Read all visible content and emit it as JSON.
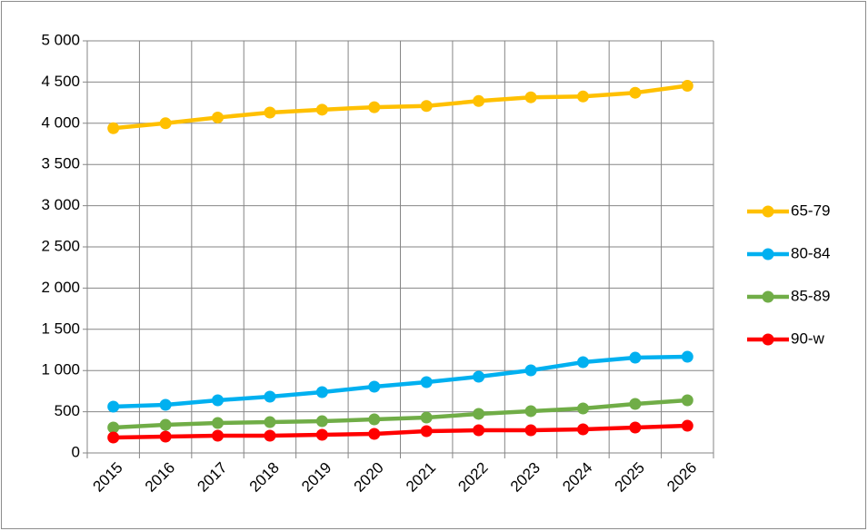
{
  "chart_data": {
    "type": "line",
    "categories": [
      "2015",
      "2016",
      "2017",
      "2018",
      "2019",
      "2020",
      "2021",
      "2022",
      "2023",
      "2024",
      "2025",
      "2026"
    ],
    "series": [
      {
        "name": "65-79",
        "color": "#ffc000",
        "values": [
          3940,
          4000,
          4070,
          4130,
          4165,
          4195,
          4210,
          4270,
          4315,
          4325,
          4370,
          4455
        ]
      },
      {
        "name": "80-84",
        "color": "#00b0f0",
        "values": [
          562,
          584,
          639,
          683,
          738,
          804,
          859,
          925,
          1002,
          1101,
          1156,
          1167
        ]
      },
      {
        "name": "85-89",
        "color": "#70ad47",
        "values": [
          308,
          341,
          363,
          374,
          385,
          407,
          429,
          474,
          507,
          540,
          595,
          639
        ]
      },
      {
        "name": "90-w",
        "color": "#ff0000",
        "values": [
          187,
          198,
          209,
          209,
          220,
          231,
          264,
          275,
          275,
          286,
          308,
          330
        ]
      }
    ],
    "ylim": [
      0,
      5000
    ],
    "yticks": [
      0,
      500,
      {
        "value": 1000,
        "label": "1 000"
      },
      {
        "value": 1500,
        "label": "1 500"
      },
      {
        "value": 2000,
        "label": "2 000"
      },
      {
        "value": 2500,
        "label": "2 500"
      },
      {
        "value": 3000,
        "label": "3 000"
      },
      {
        "value": 3500,
        "label": "3 500"
      },
      {
        "value": 4000,
        "label": "4 000"
      },
      {
        "value": 4500,
        "label": "4 500"
      },
      {
        "value": 5000,
        "label": "5 000"
      }
    ],
    "grid": true,
    "legend": "right"
  }
}
